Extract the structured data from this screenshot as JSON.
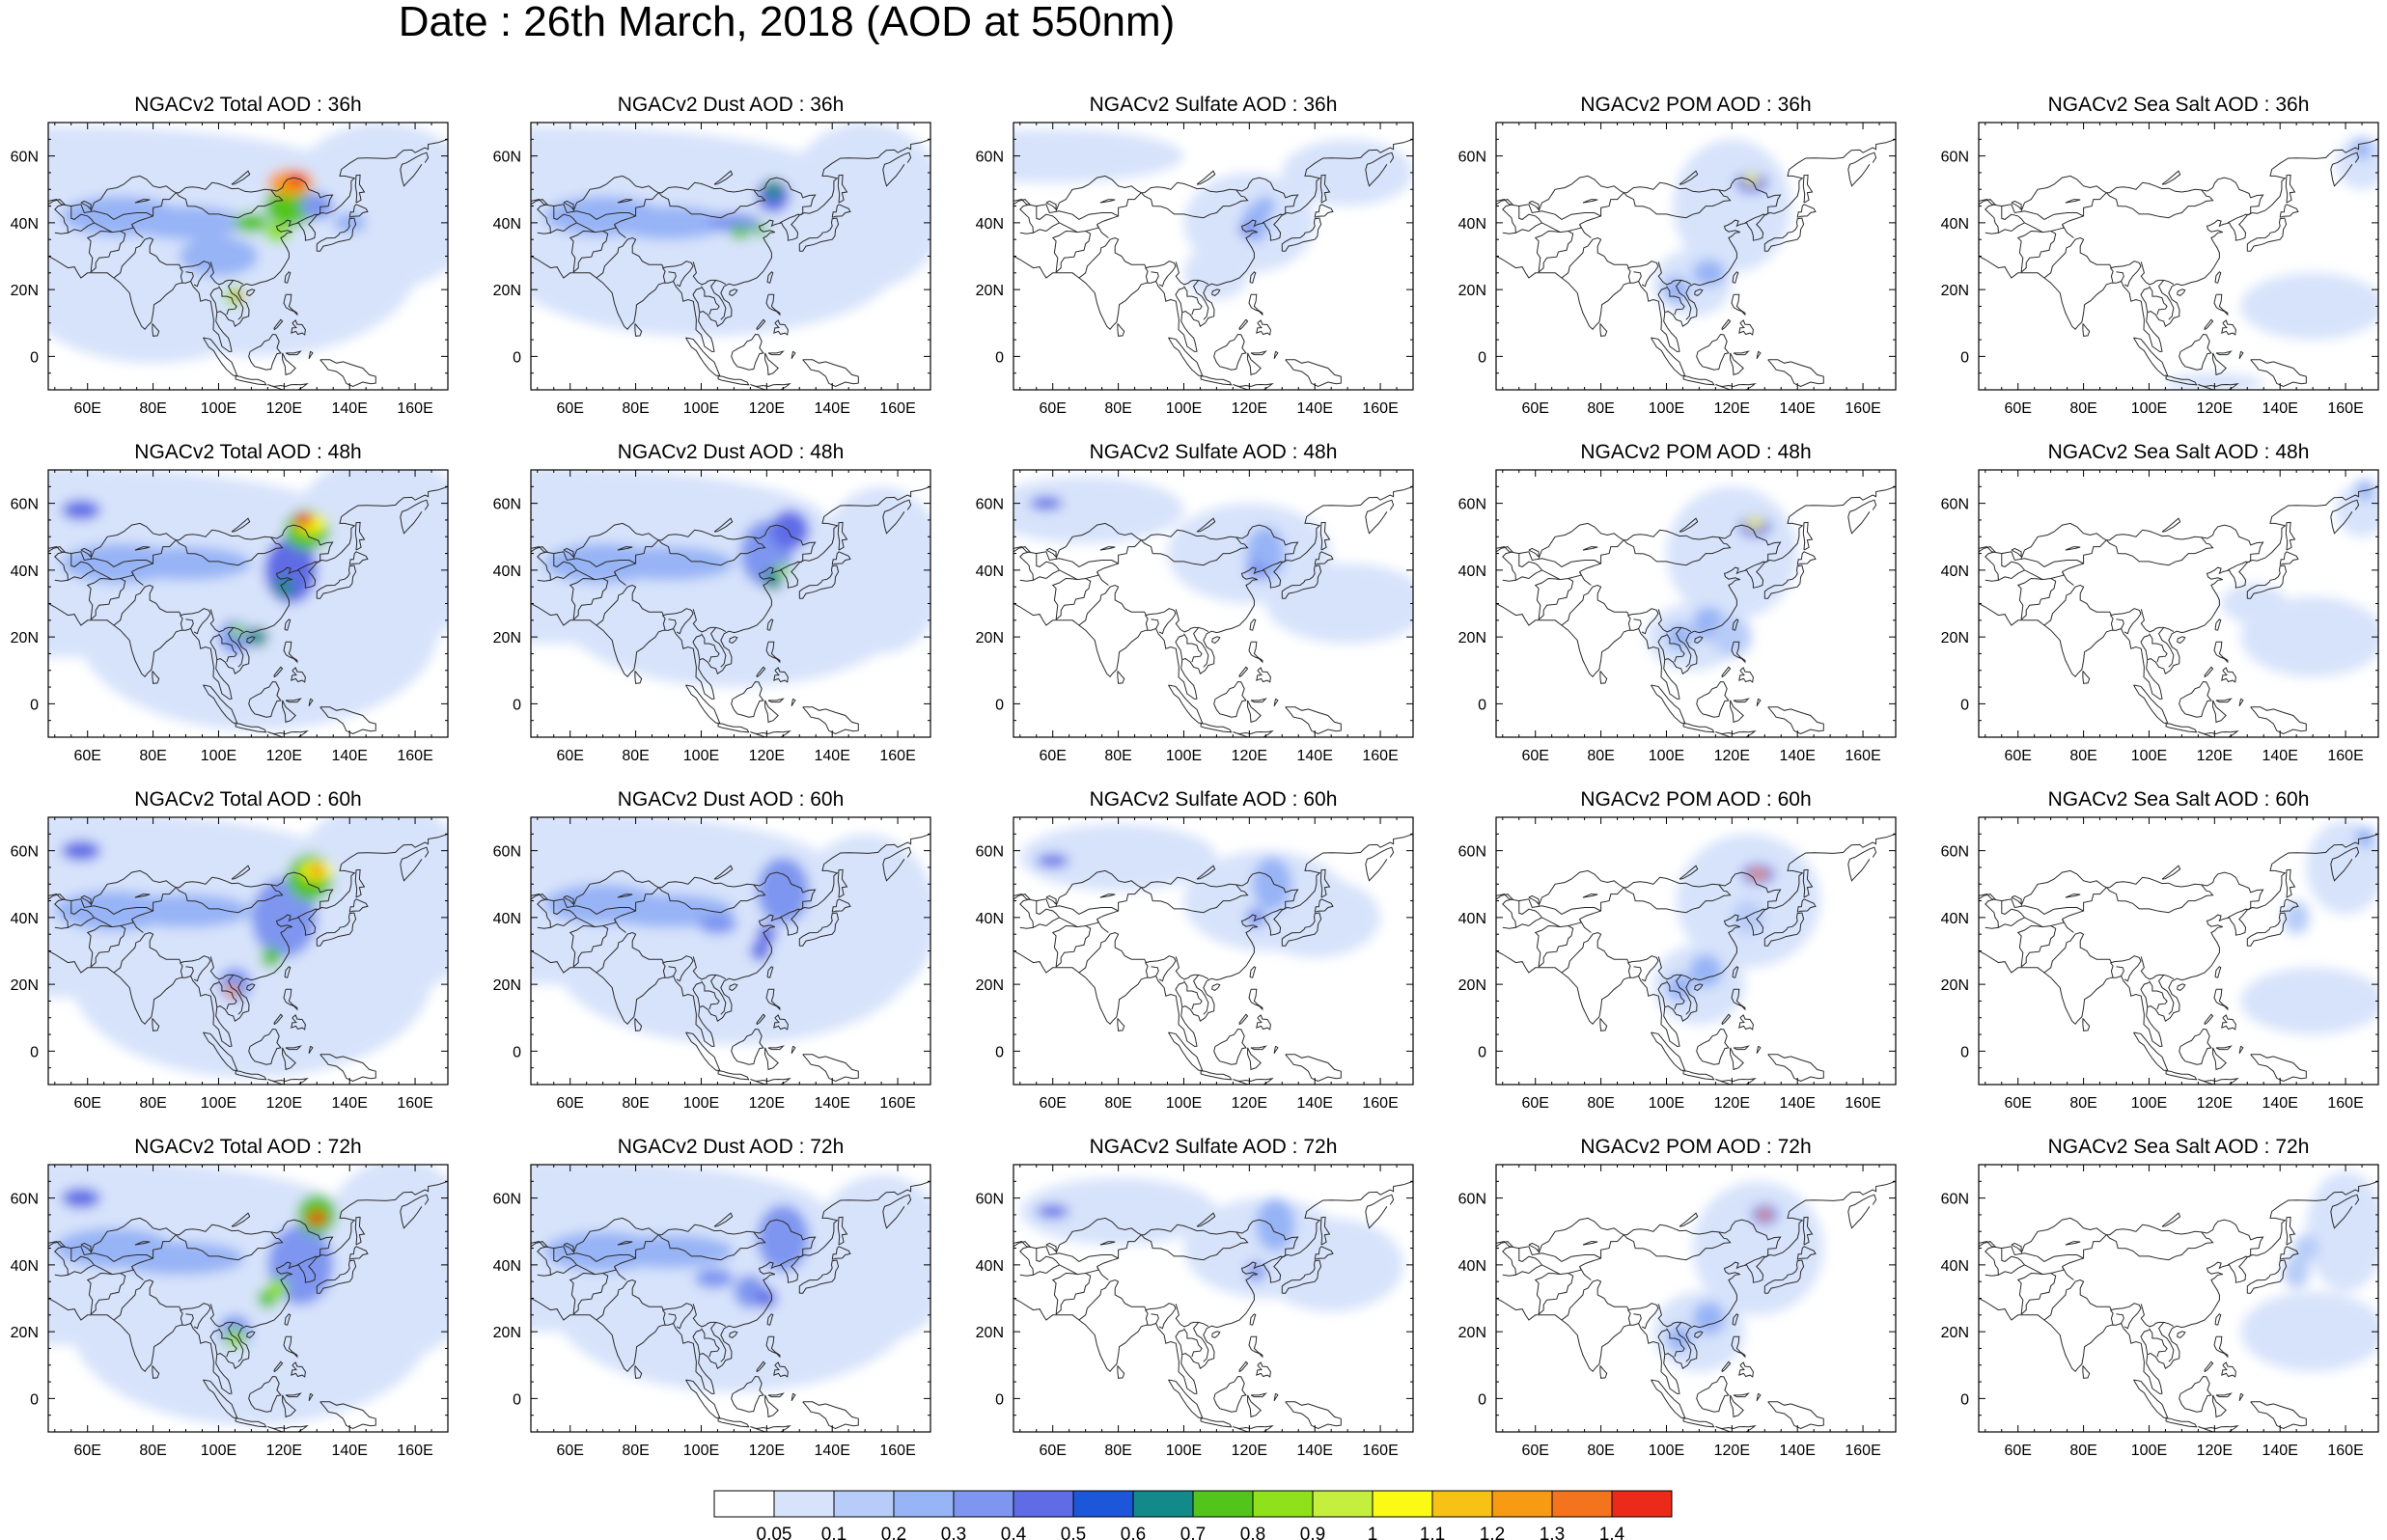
{
  "title": "Date : 26th March, 2018 (AOD at 550nm)",
  "lon_ticks": [
    "60E",
    "80E",
    "100E",
    "120E",
    "140E",
    "160E"
  ],
  "lat_ticks": [
    "60N",
    "40N",
    "20N",
    "0"
  ],
  "lon_tick_values": [
    60,
    80,
    100,
    120,
    140,
    160
  ],
  "lat_tick_values": [
    60,
    40,
    20,
    0
  ],
  "map_extent": {
    "lon": [
      48,
      170
    ],
    "lat": [
      -10,
      70
    ]
  },
  "panel_titles": [
    [
      "NGACv2 Total AOD : 36h",
      "NGACv2 Dust AOD : 36h",
      "NGACv2 Sulfate AOD : 36h",
      "NGACv2 POM AOD : 36h",
      "NGACv2 Sea Salt AOD : 36h"
    ],
    [
      "NGACv2 Total AOD : 48h",
      "NGACv2 Dust AOD : 48h",
      "NGACv2 Sulfate AOD : 48h",
      "NGACv2 POM AOD : 48h",
      "NGACv2 Sea Salt AOD : 48h"
    ],
    [
      "NGACv2 Total AOD : 60h",
      "NGACv2 Dust AOD : 60h",
      "NGACv2 Sulfate AOD : 60h",
      "NGACv2 POM AOD : 60h",
      "NGACv2 Sea Salt AOD : 60h"
    ],
    [
      "NGACv2 Total AOD : 72h",
      "NGACv2 Dust AOD : 72h",
      "NGACv2 Sulfate AOD : 72h",
      "NGACv2 POM AOD : 72h",
      "NGACv2 Sea Salt  AOD : 72h"
    ]
  ],
  "colorbar": {
    "labels": [
      "0.05",
      "0.1",
      "0.2",
      "0.3",
      "0.4",
      "0.5",
      "0.6",
      "0.7",
      "0.8",
      "0.9",
      "1",
      "1.1",
      "1.2",
      "1.3",
      "1.4"
    ],
    "colors": [
      "#ffffff",
      "#d7e3fb",
      "#b7ccf8",
      "#97b4f6",
      "#7e96f0",
      "#5f6ce6",
      "#1b57d8",
      "#138a8a",
      "#53c41b",
      "#8ee11b",
      "#c4ef3f",
      "#fafa14",
      "#f8c214",
      "#f79b14",
      "#f4731d",
      "#ec2a19"
    ]
  },
  "colors": {
    "coast": "#2a2a2a",
    "frame": "#000000"
  }
}
